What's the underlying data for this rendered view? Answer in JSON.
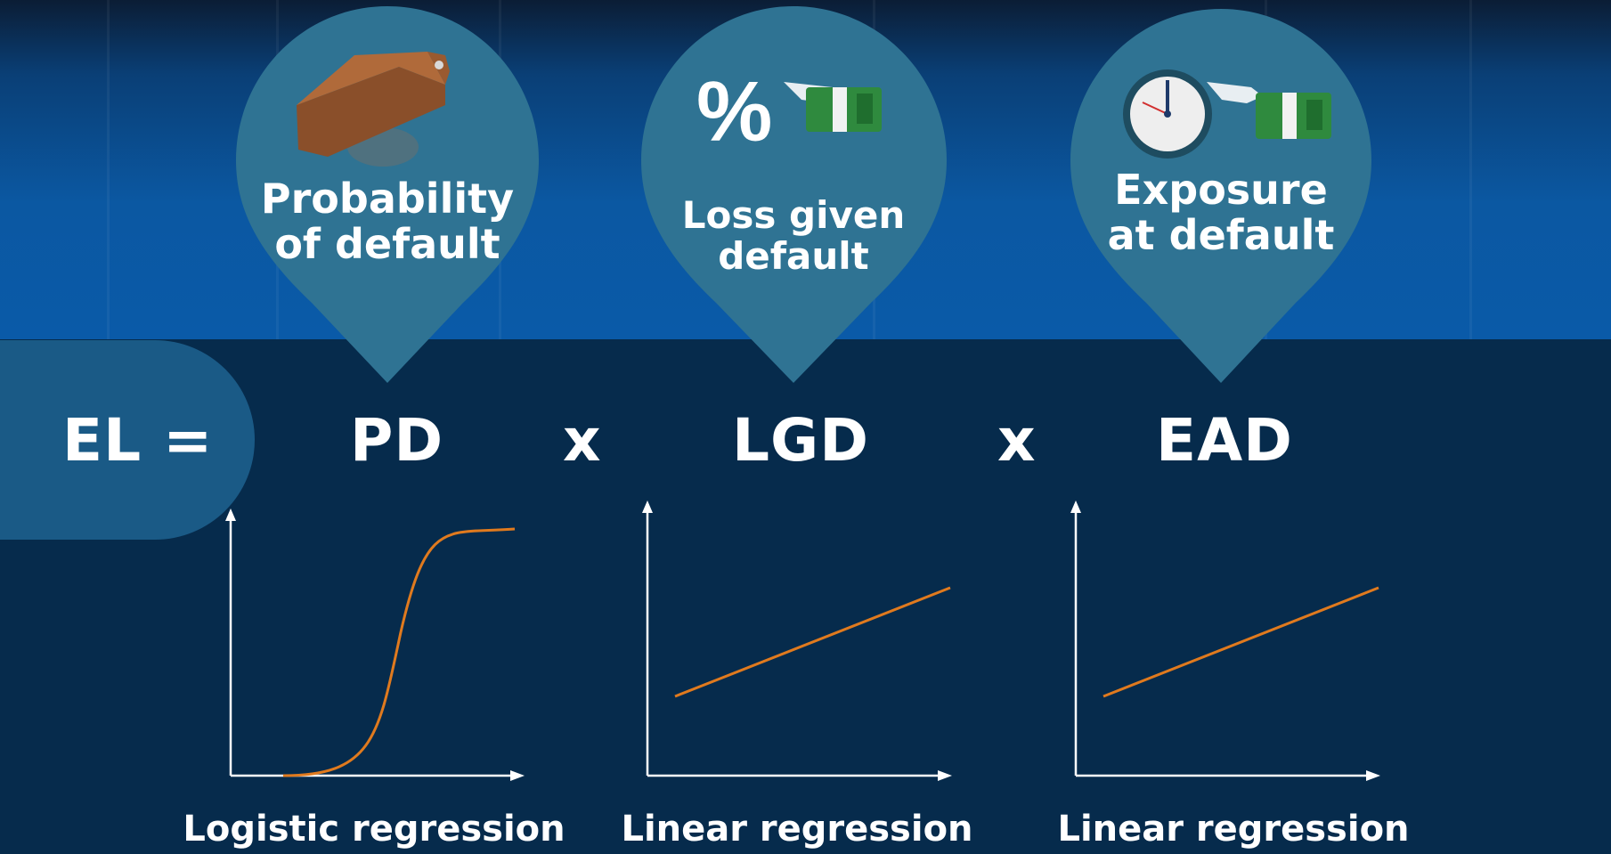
{
  "colors": {
    "background": "#062b4c",
    "top_band": "#0b58a2",
    "pin": "#2f7393",
    "el_pill": "#1a5a86",
    "curve": "#e07a1e",
    "axis": "#ffffff"
  },
  "equation": {
    "lhs": "EL =",
    "times": "x",
    "terms": [
      "PD",
      "LGD",
      "EAD"
    ]
  },
  "pins": [
    {
      "icon": "wallet-icon",
      "label_lines": [
        "Probability",
        "of default"
      ]
    },
    {
      "icon": "percent-money-icon",
      "label_lines": [
        "Loss given",
        "default"
      ]
    },
    {
      "icon": "clock-money-icon",
      "label_lines": [
        "Exposure",
        "at default"
      ]
    }
  ],
  "charts": [
    {
      "curve": "s-curve",
      "method": "Logistic regression"
    },
    {
      "curve": "straight-line",
      "method": "Linear regression"
    },
    {
      "curve": "straight-line",
      "method": "Linear regression"
    }
  ]
}
